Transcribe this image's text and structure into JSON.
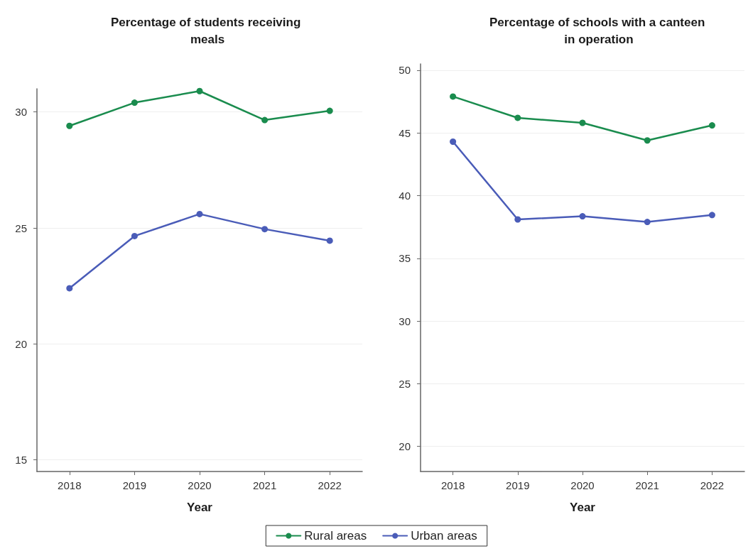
{
  "chart_data": [
    {
      "type": "line",
      "title": "Percentage of students receiving meals",
      "xlabel": "Year",
      "categories": [
        "2018",
        "2019",
        "2020",
        "2021",
        "2022"
      ],
      "series": [
        {
          "name": "Rural areas",
          "color": "#1a8c4e",
          "values": [
            29.4,
            30.4,
            30.9,
            29.65,
            30.05
          ]
        },
        {
          "name": "Urban areas",
          "color": "#4a5cb8",
          "values": [
            22.4,
            24.65,
            25.6,
            24.95,
            24.45
          ]
        }
      ],
      "ylim": [
        14.5,
        31
      ],
      "yticks": [
        15,
        20,
        25,
        30
      ],
      "grid": "y",
      "marker": "circle",
      "line_style": "solid",
      "legend": "bottom"
    },
    {
      "type": "line",
      "title": "Percentage of schools with a canteen in operation",
      "xlabel": "Year",
      "categories": [
        "2018",
        "2019",
        "2020",
        "2021",
        "2022"
      ],
      "series": [
        {
          "color": "#1a8c4e",
          "values": [
            47.9,
            46.2,
            45.8,
            44.4,
            45.6
          ]
        },
        {
          "color": "#4a5cb8",
          "values": [
            44.3,
            38.1,
            38.35,
            37.9,
            38.45
          ]
        }
      ],
      "ylim": [
        18,
        50.5
      ],
      "yticks": [
        20,
        25,
        30,
        35,
        40,
        45,
        50
      ],
      "grid": "y",
      "marker": "circle",
      "line_style": "solid"
    }
  ]
}
